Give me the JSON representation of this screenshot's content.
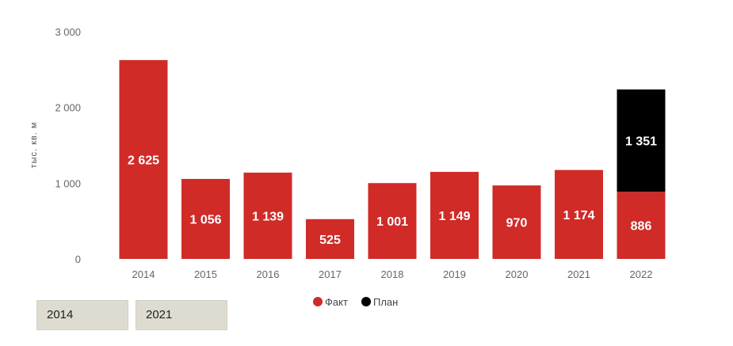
{
  "chart_data": {
    "type": "bar",
    "stacked": true,
    "categories": [
      "2014",
      "2015",
      "2016",
      "2017",
      "2018",
      "2019",
      "2020",
      "2021",
      "2022"
    ],
    "series": [
      {
        "name": "Факт",
        "color": "#d02b27",
        "values": [
          2625,
          1056,
          1139,
          525,
          1001,
          1149,
          970,
          1174,
          886
        ],
        "labels": [
          "2 625",
          "1 056",
          "1 139",
          "525",
          "1 001",
          "1 149",
          "970",
          "1 174",
          "886"
        ]
      },
      {
        "name": "План",
        "color": "#000000",
        "values": [
          null,
          null,
          null,
          null,
          null,
          null,
          null,
          null,
          1351
        ],
        "labels": [
          "",
          "",
          "",
          "",
          "",
          "",
          "",
          "",
          "1 351"
        ]
      }
    ],
    "ylabel": "тыс. кв. м",
    "ylim": [
      0,
      3000
    ],
    "yticks": [
      0,
      1000,
      2000,
      3000
    ],
    "ytick_labels": [
      "0",
      "1 000",
      "2 000",
      "3 000"
    ],
    "grid": false,
    "legend_position": "bottom-center"
  },
  "slicer": {
    "start_label": "2014",
    "end_label": "2021"
  }
}
